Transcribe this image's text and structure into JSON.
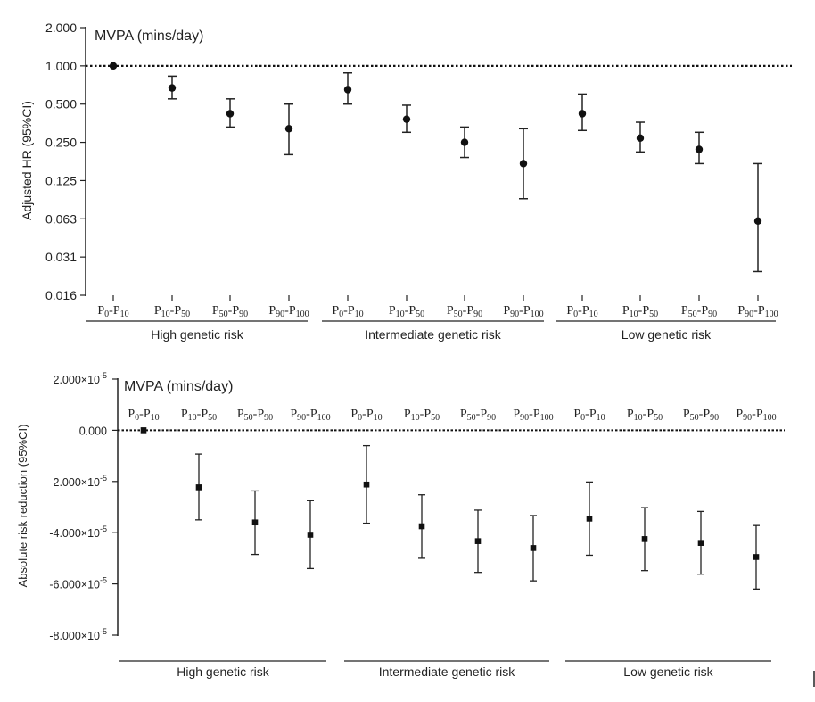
{
  "chart_data": [
    {
      "type": "scatter",
      "panel": "top",
      "title": "MVPA (mins/day)",
      "ylabel": "Adjusted HR (95%CI)",
      "xlabel": "",
      "y_scale": "log2",
      "y_ticks": [
        "2.000",
        "1.000",
        "0.500",
        "0.250",
        "0.125",
        "0.063",
        "0.031",
        "0.016"
      ],
      "y_tick_values": [
        2.0,
        1.0,
        0.5,
        0.25,
        0.125,
        0.0625,
        0.03125,
        0.015625
      ],
      "ylim": [
        0.015625,
        2.0
      ],
      "reference_line": 1.0,
      "reference_style": "dotted",
      "grid": false,
      "category_labels": [
        {
          "p": "P",
          "s1": "0",
          "dash": "-P",
          "s2": "10"
        },
        {
          "p": "P",
          "s1": "10",
          "dash": "-P",
          "s2": "50"
        },
        {
          "p": "P",
          "s1": "50",
          "dash": "-P",
          "s2": "90"
        },
        {
          "p": "P",
          "s1": "90",
          "dash": "-P",
          "s2": "100"
        },
        {
          "p": "P",
          "s1": "0",
          "dash": "-P",
          "s2": "10"
        },
        {
          "p": "P",
          "s1": "10",
          "dash": "-P",
          "s2": "50"
        },
        {
          "p": "P",
          "s1": "50",
          "dash": "-P",
          "s2": "90"
        },
        {
          "p": "P",
          "s1": "90",
          "dash": "-P",
          "s2": "100"
        },
        {
          "p": "P",
          "s1": "0",
          "dash": "-P",
          "s2": "10"
        },
        {
          "p": "P",
          "s1": "10",
          "dash": "-P",
          "s2": "50"
        },
        {
          "p": "P",
          "s1": "50",
          "dash": "-P",
          "s2": "90"
        },
        {
          "p": "P",
          "s1": "90",
          "dash": "-P",
          "s2": "100"
        }
      ],
      "groups": [
        "High genetic risk",
        "Intermediate genetic risk",
        "Low genetic risk"
      ],
      "points": [
        {
          "group": 0,
          "category": 0,
          "estimate": 1.0,
          "lower": null,
          "upper": null
        },
        {
          "group": 0,
          "category": 1,
          "estimate": 0.67,
          "lower": 0.55,
          "upper": 0.83
        },
        {
          "group": 0,
          "category": 2,
          "estimate": 0.42,
          "lower": 0.33,
          "upper": 0.55
        },
        {
          "group": 0,
          "category": 3,
          "estimate": 0.32,
          "lower": 0.2,
          "upper": 0.5
        },
        {
          "group": 1,
          "category": 0,
          "estimate": 0.65,
          "lower": 0.5,
          "upper": 0.88
        },
        {
          "group": 1,
          "category": 1,
          "estimate": 0.38,
          "lower": 0.3,
          "upper": 0.49
        },
        {
          "group": 1,
          "category": 2,
          "estimate": 0.25,
          "lower": 0.19,
          "upper": 0.33
        },
        {
          "group": 1,
          "category": 3,
          "estimate": 0.17,
          "lower": 0.09,
          "upper": 0.32
        },
        {
          "group": 2,
          "category": 0,
          "estimate": 0.42,
          "lower": 0.31,
          "upper": 0.6
        },
        {
          "group": 2,
          "category": 1,
          "estimate": 0.27,
          "lower": 0.21,
          "upper": 0.36
        },
        {
          "group": 2,
          "category": 2,
          "estimate": 0.22,
          "lower": 0.17,
          "upper": 0.3
        },
        {
          "group": 2,
          "category": 3,
          "estimate": 0.06,
          "lower": 0.024,
          "upper": 0.17
        }
      ]
    },
    {
      "type": "scatter",
      "panel": "bottom",
      "title": "MVPA (mins/day)",
      "ylabel": "Absolute risk reduction (95%CI)",
      "xlabel": "",
      "y_scale": "linear",
      "y_ticks": [
        {
          "mant": "2.000×10",
          "exp": "-5"
        },
        {
          "mant": "0.000",
          "exp": ""
        },
        {
          "mant": "-2.000×10",
          "exp": "-5"
        },
        {
          "mant": "-4.000×10",
          "exp": "-5"
        },
        {
          "mant": "-6.000×10",
          "exp": "-5"
        },
        {
          "mant": "-8.000×10",
          "exp": "-5"
        }
      ],
      "y_tick_values": [
        2e-05,
        0,
        -2e-05,
        -4e-05,
        -6e-05,
        -8e-05
      ],
      "ylim": [
        -8e-05,
        2e-05
      ],
      "reference_line": 0,
      "reference_style": "dotted",
      "grid": false,
      "category_labels": [
        {
          "p": "P",
          "s1": "0",
          "dash": "-P",
          "s2": "10"
        },
        {
          "p": "P",
          "s1": "10",
          "dash": "-P",
          "s2": "50"
        },
        {
          "p": "P",
          "s1": "50",
          "dash": "-P",
          "s2": "90"
        },
        {
          "p": "P",
          "s1": "90",
          "dash": "-P",
          "s2": "100"
        },
        {
          "p": "P",
          "s1": "0",
          "dash": "-P",
          "s2": "10"
        },
        {
          "p": "P",
          "s1": "10",
          "dash": "-P",
          "s2": "50"
        },
        {
          "p": "P",
          "s1": "50",
          "dash": "-P",
          "s2": "90"
        },
        {
          "p": "P",
          "s1": "90",
          "dash": "-P",
          "s2": "100"
        },
        {
          "p": "P",
          "s1": "0",
          "dash": "-P",
          "s2": "10"
        },
        {
          "p": "P",
          "s1": "10",
          "dash": "-P",
          "s2": "50"
        },
        {
          "p": "P",
          "s1": "50",
          "dash": "-P",
          "s2": "90"
        },
        {
          "p": "P",
          "s1": "90",
          "dash": "-P",
          "s2": "100"
        }
      ],
      "groups": [
        "High genetic risk",
        "Intermediate genetic risk",
        "Low genetic risk"
      ],
      "points": [
        {
          "group": 0,
          "category": 0,
          "estimate": 0.0,
          "lower": null,
          "upper": null
        },
        {
          "group": 0,
          "category": 1,
          "estimate": -2.23e-05,
          "lower": -3.5e-05,
          "upper": -9.3e-06
        },
        {
          "group": 0,
          "category": 2,
          "estimate": -3.6e-05,
          "lower": -4.85e-05,
          "upper": -2.37e-05
        },
        {
          "group": 0,
          "category": 3,
          "estimate": -4.08e-05,
          "lower": -5.4e-05,
          "upper": -2.75e-05
        },
        {
          "group": 1,
          "category": 0,
          "estimate": -2.12e-05,
          "lower": -3.63e-05,
          "upper": -6e-06
        },
        {
          "group": 1,
          "category": 1,
          "estimate": -3.75e-05,
          "lower": -5e-05,
          "upper": -2.52e-05
        },
        {
          "group": 1,
          "category": 2,
          "estimate": -4.33e-05,
          "lower": -5.55e-05,
          "upper": -3.12e-05
        },
        {
          "group": 1,
          "category": 3,
          "estimate": -4.6e-05,
          "lower": -5.88e-05,
          "upper": -3.33e-05
        },
        {
          "group": 2,
          "category": 0,
          "estimate": -3.45e-05,
          "lower": -4.88e-05,
          "upper": -2.02e-05
        },
        {
          "group": 2,
          "category": 1,
          "estimate": -4.25e-05,
          "lower": -5.48e-05,
          "upper": -3.02e-05
        },
        {
          "group": 2,
          "category": 2,
          "estimate": -4.4e-05,
          "lower": -5.62e-05,
          "upper": -3.17e-05
        },
        {
          "group": 2,
          "category": 3,
          "estimate": -4.95e-05,
          "lower": -6.2e-05,
          "upper": -3.72e-05
        }
      ]
    }
  ]
}
